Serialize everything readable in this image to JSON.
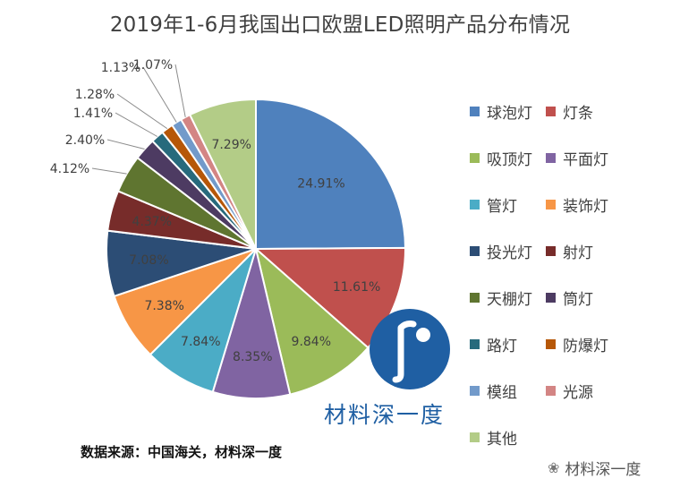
{
  "title": "2019年1-6月我国出口欧盟LED照明产品分布情况",
  "source": "数据来源：中国海关，材料深一度",
  "watermark": "材料深一度",
  "wechat": "材料深一度",
  "colors": {
    "球泡灯": "#4f81bd",
    "灯条": "#c0504d",
    "吸顶灯": "#9bbb59",
    "平面灯": "#8064a2",
    "管灯": "#4bacc6",
    "装饰灯": "#f79646",
    "投光灯": "#2c4d75",
    "射灯": "#772c2a",
    "天棚灯": "#5f7530",
    "筒灯": "#4d3b62",
    "路灯": "#276a7c",
    "防爆灯": "#b65708",
    "模组": "#729aca",
    "光源": "#d38584",
    "其他": "#b3cc87"
  },
  "chart_data": {
    "type": "pie",
    "title": "2019年1-6月我国出口欧盟LED照明产品分布情况",
    "categories": [
      "球泡灯",
      "灯条",
      "吸顶灯",
      "平面灯",
      "管灯",
      "装饰灯",
      "投光灯",
      "射灯",
      "天棚灯",
      "筒灯",
      "路灯",
      "防爆灯",
      "模组",
      "光源",
      "其他"
    ],
    "values": [
      24.91,
      11.61,
      9.84,
      8.35,
      7.84,
      7.38,
      7.08,
      4.37,
      4.12,
      2.4,
      1.41,
      1.28,
      1.13,
      1.07,
      7.29
    ],
    "labels": [
      "24.91%",
      "11.61%",
      "9.84%",
      "8.35%",
      "7.84%",
      "7.38%",
      "7.08%",
      "4.37%",
      "4.12%",
      "2.40%",
      "1.41%",
      "1.28%",
      "1.13%",
      "1.07%",
      "7.29%"
    ],
    "legend_position": "right"
  }
}
